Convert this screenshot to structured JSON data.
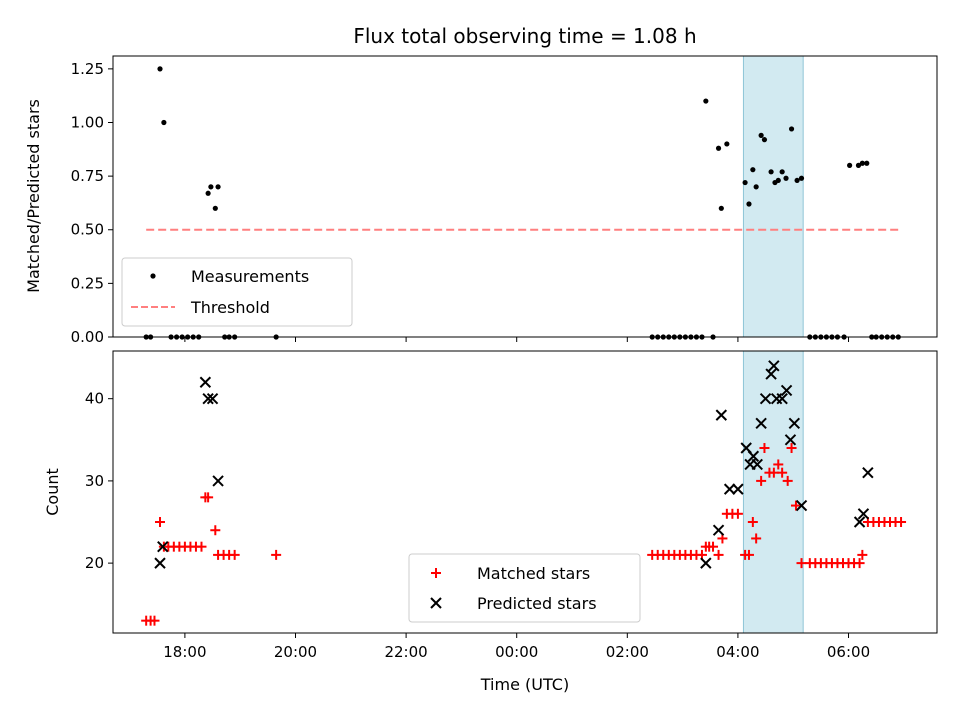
{
  "chart_data": {
    "type": "scatter",
    "title": "Flux total observing time = 1.08 h",
    "xlabel": "Time (UTC)",
    "x_unit": "hours (UTC clock; values past 24 continue into next day)",
    "xlim": [
      16.7,
      31.6
    ],
    "xticks": [
      {
        "value": 18,
        "label": "18:00"
      },
      {
        "value": 20,
        "label": "20:00"
      },
      {
        "value": 22,
        "label": "22:00"
      },
      {
        "value": 24,
        "label": "00:00"
      },
      {
        "value": 26,
        "label": "02:00"
      },
      {
        "value": 28,
        "label": "04:00"
      },
      {
        "value": 30,
        "label": "06:00"
      }
    ],
    "highlight_span": {
      "x0": 28.1,
      "x1": 29.18,
      "color": "#add8e6"
    },
    "panels": [
      {
        "id": "ratio",
        "ylabel": "Matched/Predicted stars",
        "ylim": [
          0,
          1.31
        ],
        "yticks": [
          {
            "value": 0,
            "label": "0.00"
          },
          {
            "value": 0.25,
            "label": "0.25"
          },
          {
            "value": 0.5,
            "label": "0.50"
          },
          {
            "value": 0.75,
            "label": "0.75"
          },
          {
            "value": 1.0,
            "label": "1.00"
          },
          {
            "value": 1.25,
            "label": "1.25"
          }
        ],
        "legend": {
          "placement": "lower-left",
          "entries": [
            "Measurements",
            "Threshold"
          ]
        },
        "series": [
          {
            "name": "Measurements",
            "marker": "dot",
            "color": "#000000",
            "x": [
              17.3,
              17.38,
              17.55,
              17.62,
              17.75,
              17.85,
              17.95,
              18.05,
              18.15,
              18.25,
              18.42,
              18.47,
              18.55,
              18.6,
              18.72,
              18.8,
              18.9,
              19.65,
              26.45,
              26.55,
              26.65,
              26.75,
              26.85,
              26.95,
              27.05,
              27.15,
              27.25,
              27.35,
              27.42,
              27.55,
              27.65,
              27.7,
              27.8,
              28.13,
              28.2,
              28.27,
              28.33,
              28.42,
              28.48,
              28.6,
              28.67,
              28.73,
              28.8,
              28.87,
              28.97,
              29.07,
              29.15,
              29.3,
              29.4,
              29.5,
              29.6,
              29.7,
              29.8,
              29.92,
              30.02,
              30.18,
              30.25,
              30.33,
              30.42,
              30.5,
              30.6,
              30.7,
              30.8,
              30.9
            ],
            "y": [
              0,
              0,
              1.25,
              1.0,
              0,
              0,
              0,
              0,
              0,
              0,
              0.67,
              0.7,
              0.6,
              0.7,
              0,
              0,
              0,
              0,
              0,
              0,
              0,
              0,
              0,
              0,
              0,
              0,
              0,
              0,
              1.1,
              0,
              0.88,
              0.6,
              0.9,
              0.72,
              0.62,
              0.78,
              0.7,
              0.94,
              0.92,
              0.77,
              0.72,
              0.73,
              0.77,
              0.74,
              0.97,
              0.73,
              0.74,
              0,
              0,
              0,
              0,
              0,
              0,
              0,
              0.8,
              0.8,
              0.81,
              0.81,
              0,
              0,
              0,
              0,
              0,
              0
            ]
          },
          {
            "name": "Threshold",
            "marker": "dashed-line",
            "color": "#ff7f7f",
            "x": [
              17.3,
              30.9
            ],
            "y": [
              0.5,
              0.5
            ]
          }
        ]
      },
      {
        "id": "count",
        "ylabel": "Count",
        "ylim": [
          11.5,
          45.8
        ],
        "yticks": [
          {
            "value": 20,
            "label": "20"
          },
          {
            "value": 30,
            "label": "30"
          },
          {
            "value": 40,
            "label": "40"
          }
        ],
        "legend": {
          "placement": "lower-center",
          "entries": [
            "Matched stars",
            "Predicted stars"
          ]
        },
        "series": [
          {
            "name": "Matched stars",
            "marker": "plus",
            "color": "#ff0000",
            "x": [
              17.3,
              17.38,
              17.45,
              17.55,
              17.62,
              17.7,
              17.8,
              17.9,
              18.0,
              18.1,
              18.2,
              18.3,
              18.37,
              18.42,
              18.55,
              18.6,
              18.7,
              18.8,
              18.9,
              19.65,
              26.45,
              26.55,
              26.65,
              26.75,
              26.85,
              26.95,
              27.05,
              27.15,
              27.25,
              27.35,
              27.42,
              27.48,
              27.55,
              27.65,
              27.72,
              27.8,
              27.9,
              28.0,
              28.13,
              28.2,
              28.27,
              28.33,
              28.42,
              28.48,
              28.57,
              28.65,
              28.73,
              28.8,
              28.9,
              28.97,
              29.05,
              29.15,
              29.3,
              29.4,
              29.5,
              29.6,
              29.7,
              29.8,
              29.9,
              30.0,
              30.1,
              30.2,
              30.25,
              30.35,
              30.45,
              30.55,
              30.65,
              30.75,
              30.85,
              30.95
            ],
            "y": [
              13,
              13,
              13,
              25,
              22,
              22,
              22,
              22,
              22,
              22,
              22,
              22,
              28,
              28,
              24,
              21,
              21,
              21,
              21,
              21,
              21,
              21,
              21,
              21,
              21,
              21,
              21,
              21,
              21,
              21,
              22,
              22,
              22,
              21,
              23,
              26,
              26,
              26,
              21,
              21,
              25,
              23,
              30,
              34,
              31,
              31,
              32,
              31,
              30,
              34,
              27,
              20,
              20,
              20,
              20,
              20,
              20,
              20,
              20,
              20,
              20,
              20,
              21,
              25,
              25,
              25,
              25,
              25,
              25,
              25
            ]
          },
          {
            "name": "Predicted stars",
            "marker": "x",
            "color": "#000000",
            "x": [
              17.55,
              17.6,
              18.37,
              18.42,
              18.5,
              18.6,
              27.42,
              27.65,
              27.7,
              27.85,
              28.0,
              28.15,
              28.22,
              28.28,
              28.35,
              28.42,
              28.5,
              28.6,
              28.65,
              28.7,
              28.8,
              28.88,
              28.95,
              29.02,
              29.15,
              30.2,
              30.27,
              30.35
            ],
            "y": [
              20,
              22,
              42,
              40,
              40,
              30,
              20,
              24,
              38,
              29,
              29,
              34,
              32,
              33,
              32,
              37,
              40,
              43,
              44,
              40,
              40,
              41,
              35,
              37,
              27,
              25,
              26,
              31
            ]
          }
        ]
      }
    ]
  }
}
